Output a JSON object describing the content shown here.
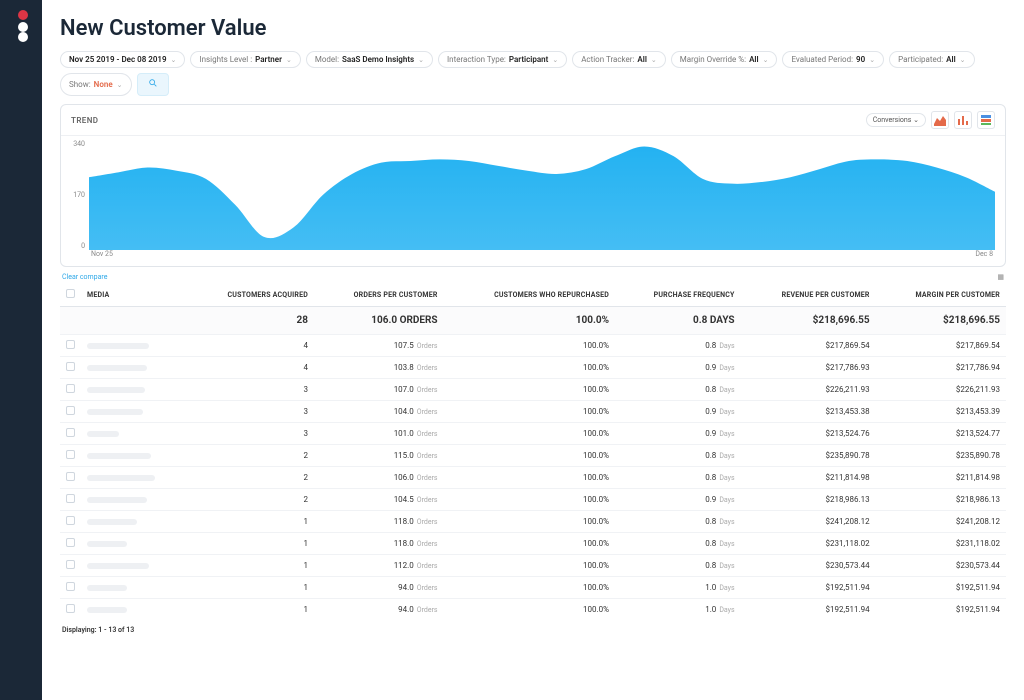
{
  "page_title": "New Customer Value",
  "filters": [
    {
      "label": "",
      "value": "Nov 25 2019 - Dec 08 2019"
    },
    {
      "label": "Insights Level :",
      "value": "Partner"
    },
    {
      "label": "Model:",
      "value": "SaaS Demo Insights"
    },
    {
      "label": "Interaction Type:",
      "value": "Participant"
    },
    {
      "label": "Action Tracker:",
      "value": "All"
    },
    {
      "label": "Margin Override %:",
      "value": "All"
    },
    {
      "label": "Evaluated Period:",
      "value": "90"
    },
    {
      "label": "Participated:",
      "value": "All"
    }
  ],
  "show_label": "Show:",
  "show_value": "None",
  "trend": {
    "title": "TREND",
    "dropdown": "Conversions",
    "ylim": [
      0,
      340
    ],
    "yticks": [
      "340",
      "170",
      "0"
    ],
    "xticks": [
      "Nov 25",
      "Dec 8"
    ],
    "area_color": "#18aef1",
    "area_opacity": 0.95,
    "values": [
      225,
      240,
      255,
      245,
      220,
      140,
      40,
      70,
      170,
      235,
      270,
      275,
      280,
      275,
      260,
      245,
      235,
      250,
      290,
      320,
      290,
      220,
      205,
      210,
      225,
      250,
      275,
      280,
      275,
      255,
      225,
      180
    ]
  },
  "clear_compare": "Clear compare",
  "columns": [
    "MEDIA",
    "CUSTOMERS ACQUIRED",
    "ORDERS PER CUSTOMER",
    "CUSTOMERS WHO REPURCHASED",
    "PURCHASE FREQUENCY",
    "REVENUE PER CUSTOMER",
    "MARGIN PER CUSTOMER"
  ],
  "totals": {
    "customers": "28",
    "orders": "106.0 ORDERS",
    "repurchased": "100.0%",
    "freq": "0.8 DAYS",
    "revenue": "$218,696.55",
    "margin": "$218,696.55"
  },
  "rows": [
    {
      "sk": 62,
      "customers": "4",
      "orders": "107.5",
      "rep": "100.0%",
      "freq": "0.8",
      "rev": "$217,869.54",
      "mar": "$217,869.54"
    },
    {
      "sk": 60,
      "customers": "4",
      "orders": "103.8",
      "rep": "100.0%",
      "freq": "0.9",
      "rev": "$217,786.93",
      "mar": "$217,786.94"
    },
    {
      "sk": 58,
      "customers": "3",
      "orders": "107.0",
      "rep": "100.0%",
      "freq": "0.8",
      "rev": "$226,211.93",
      "mar": "$226,211.93"
    },
    {
      "sk": 56,
      "customers": "3",
      "orders": "104.0",
      "rep": "100.0%",
      "freq": "0.9",
      "rev": "$213,453.38",
      "mar": "$213,453.39"
    },
    {
      "sk": 32,
      "customers": "3",
      "orders": "101.0",
      "rep": "100.0%",
      "freq": "0.9",
      "rev": "$213,524.76",
      "mar": "$213,524.77"
    },
    {
      "sk": 64,
      "customers": "2",
      "orders": "115.0",
      "rep": "100.0%",
      "freq": "0.8",
      "rev": "$235,890.78",
      "mar": "$235,890.78"
    },
    {
      "sk": 68,
      "customers": "2",
      "orders": "106.0",
      "rep": "100.0%",
      "freq": "0.8",
      "rev": "$211,814.98",
      "mar": "$211,814.98"
    },
    {
      "sk": 60,
      "customers": "2",
      "orders": "104.5",
      "rep": "100.0%",
      "freq": "0.9",
      "rev": "$218,986.13",
      "mar": "$218,986.13"
    },
    {
      "sk": 50,
      "customers": "1",
      "orders": "118.0",
      "rep": "100.0%",
      "freq": "0.8",
      "rev": "$241,208.12",
      "mar": "$241,208.12"
    },
    {
      "sk": 40,
      "customers": "1",
      "orders": "118.0",
      "rep": "100.0%",
      "freq": "0.8",
      "rev": "$231,118.02",
      "mar": "$231,118.02"
    },
    {
      "sk": 62,
      "customers": "1",
      "orders": "112.0",
      "rep": "100.0%",
      "freq": "0.8",
      "rev": "$230,573.44",
      "mar": "$230,573.44"
    },
    {
      "sk": 40,
      "customers": "1",
      "orders": "94.0",
      "rep": "100.0%",
      "freq": "1.0",
      "rev": "$192,511.94",
      "mar": "$192,511.94"
    },
    {
      "sk": 40,
      "customers": "1",
      "orders": "94.0",
      "rep": "100.0%",
      "freq": "1.0",
      "rev": "$192,511.94",
      "mar": "$192,511.94"
    }
  ],
  "orders_unit": "Orders",
  "freq_unit": "Days",
  "footer": "Displaying: 1 - 13 of 13"
}
